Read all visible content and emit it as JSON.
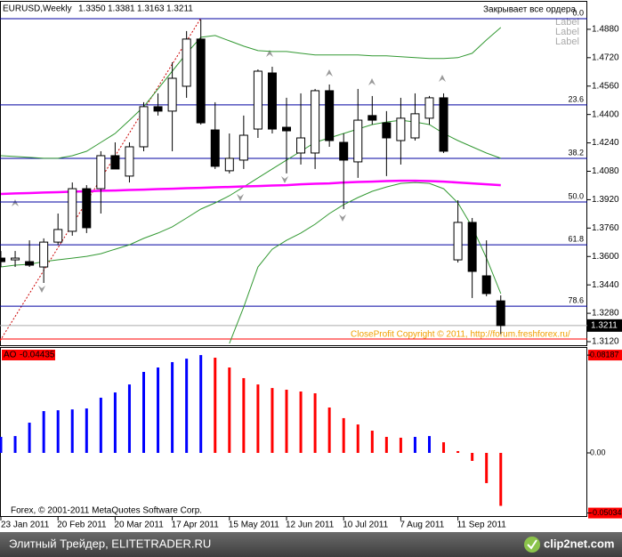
{
  "chart_data": [
    {
      "type": "candlestick",
      "title": "EURUSD,Weekly",
      "quote_labels": [
        "1.3350",
        "1.3381",
        "1.3163",
        "1.3211"
      ],
      "annotations": [
        "Закрывает все ордера",
        "Label",
        "Label",
        "Label",
        "CloseProfit Copyright © 2011, http://forum.freshforex.ru/"
      ],
      "categories": [
        "23 Jan 2011",
        null,
        null,
        null,
        "20 Feb 2011",
        null,
        null,
        null,
        "20 Mar 2011",
        null,
        null,
        null,
        "17 Apr 2011",
        null,
        null,
        null,
        "15 May 2011",
        null,
        null,
        null,
        "12 Jun 2011",
        null,
        null,
        null,
        "10 Jul 2011",
        null,
        null,
        null,
        "7 Aug 2011",
        null,
        null,
        null,
        "11 Sep 2011",
        null,
        null,
        null
      ],
      "open": [
        1.3591,
        1.3581,
        1.3571,
        1.3541,
        1.3681,
        1.3742,
        1.3982,
        1.3982,
        1.4168,
        1.4053,
        1.4218,
        1.4444,
        1.4419,
        1.4559,
        1.4825,
        1.4313,
        1.4083,
        1.4143,
        1.4318,
        1.4634,
        1.4328,
        1.4183,
        1.4183,
        1.4534,
        1.4243,
        1.4133,
        1.4394,
        1.4353,
        1.4253,
        1.4268,
        1.4379,
        1.4494,
        1.3581,
        1.3792,
        1.3491,
        1.335
      ],
      "high": [
        1.3631,
        1.3631,
        1.3691,
        1.3702,
        1.3842,
        1.4017,
        1.4002,
        1.4193,
        1.4243,
        1.4243,
        1.4469,
        1.4519,
        1.4694,
        1.487,
        1.4935,
        1.4469,
        1.4293,
        1.4394,
        1.4654,
        1.4669,
        1.4494,
        1.4519,
        1.4544,
        1.4569,
        1.4293,
        1.4544,
        1.4504,
        1.4419,
        1.4494,
        1.4519,
        1.4504,
        1.4519,
        1.3917,
        1.3817,
        1.3691,
        1.3381
      ],
      "low": [
        1.3541,
        1.3541,
        1.3541,
        1.3451,
        1.3666,
        1.3717,
        1.3732,
        1.3842,
        1.4093,
        1.4017,
        1.4193,
        1.4394,
        1.4193,
        1.4494,
        1.4343,
        1.4093,
        1.4068,
        1.4093,
        1.4268,
        1.4293,
        1.4068,
        1.4118,
        1.4093,
        1.4218,
        1.3867,
        1.4043,
        1.4343,
        1.4053,
        1.4118,
        1.4253,
        1.4343,
        1.4183,
        1.3566,
        1.3366,
        1.3376,
        1.3163
      ],
      "close": [
        1.3571,
        1.3591,
        1.3551,
        1.3681,
        1.3752,
        1.3982,
        1.3762,
        1.4168,
        1.4093,
        1.4218,
        1.4444,
        1.4419,
        1.4604,
        1.4825,
        1.4353,
        1.4108,
        1.4153,
        1.4283,
        1.4644,
        1.4318,
        1.4308,
        1.4268,
        1.4534,
        1.4253,
        1.4143,
        1.4368,
        1.4368,
        1.4268,
        1.4379,
        1.4404,
        1.4494,
        1.4193,
        1.3792,
        1.3516,
        1.3391,
        1.3211
      ],
      "up_color": "#ffffff",
      "down_color": "#000000",
      "overlays": [
        {
          "color": "#339933",
          "values": [
            1.4168,
            1.4163,
            1.4158,
            1.4153,
            1.4153,
            1.4168,
            1.4193,
            1.4243,
            1.4293,
            1.4368,
            1.4444,
            1.4544,
            1.4644,
            1.4745,
            1.4835,
            1.4845,
            1.4815,
            1.4785,
            1.476,
            1.4755,
            1.4755,
            1.4745,
            1.4735,
            1.4735,
            1.4735,
            1.4735,
            1.473,
            1.473,
            1.4725,
            1.472,
            1.4715,
            1.4715,
            1.472,
            1.4745,
            1.482,
            1.489
          ]
        },
        {
          "color": "#339933",
          "values": [
            1.3541,
            1.3551,
            1.3556,
            1.3571,
            1.3581,
            1.3591,
            1.3601,
            1.3616,
            1.3641,
            1.3666,
            1.3702,
            1.3732,
            1.3767,
            1.3817,
            1.3867,
            1.3902,
            1.3942,
            1.3992,
            1.4043,
            1.4093,
            1.4143,
            1.4193,
            1.4243,
            1.4268,
            1.4293,
            1.4318,
            1.4343,
            1.4358,
            1.4368,
            1.4358,
            1.4343,
            1.4293,
            1.4253,
            1.4218,
            1.4183,
            1.4153
          ]
        },
        {
          "color": "#339933",
          "values": [
            null,
            null,
            null,
            null,
            null,
            null,
            null,
            null,
            null,
            null,
            null,
            null,
            null,
            null,
            null,
            null,
            1.311,
            1.3315,
            1.3541,
            1.3641,
            1.3691,
            1.3732,
            1.3782,
            1.3842,
            1.3892,
            1.3932,
            1.3967,
            1.3992,
            1.4012,
            1.4017,
            1.4012,
            1.3982,
            1.3902,
            1.3767,
            1.3591,
            1.3391
          ]
        },
        {
          "color": "#ff00ff",
          "values": [
            1.3952,
            1.3955,
            1.3957,
            1.396,
            1.3962,
            1.3965,
            1.3967,
            1.397,
            1.3972,
            1.3975,
            1.3977,
            1.398,
            1.3982,
            1.3985,
            1.3987,
            1.399,
            1.3992,
            1.3995,
            1.3997,
            1.4,
            1.4002,
            1.4007,
            1.401,
            1.4012,
            1.4017,
            1.402,
            1.4022,
            1.4025,
            1.4027,
            1.4027,
            1.4025,
            1.4022,
            1.4017,
            1.4012,
            1.4007,
            1.4002
          ]
        }
      ],
      "levels": [
        {
          "value": 1.494,
          "label": "0.0",
          "color": "#0000a0"
        },
        {
          "value": 1.4454,
          "label": "23.6",
          "color": "#0000a0"
        },
        {
          "value": 1.4153,
          "label": "38.2",
          "color": "#0000a0"
        },
        {
          "value": 1.3907,
          "label": "50.0",
          "color": "#0000a0"
        },
        {
          "value": 1.3666,
          "label": "61.8",
          "color": "#0000a0"
        },
        {
          "value": 1.332,
          "label": "78.6",
          "color": "#0000a0"
        },
        {
          "value": 1.3135,
          "color": "#ff0000"
        }
      ],
      "ylim": [
        1.31,
        1.5035
      ],
      "yticks": [
        {
          "value": 1.488,
          "label": "1.4880"
        },
        {
          "value": 1.472,
          "label": "1.4720"
        },
        {
          "value": 1.456,
          "label": "1.4560"
        },
        {
          "value": 1.44,
          "label": "1.4400"
        },
        {
          "value": 1.424,
          "label": "1.4240"
        },
        {
          "value": 1.408,
          "label": "1.4080"
        },
        {
          "value": 1.392,
          "label": "1.3920"
        },
        {
          "value": 1.376,
          "label": "1.3760"
        },
        {
          "value": 1.36,
          "label": "1.3600"
        },
        {
          "value": 1.344,
          "label": "1.3440"
        },
        {
          "value": 1.328,
          "label": "1.3280"
        },
        {
          "value": 1.312,
          "label": "1.3120"
        }
      ],
      "grid": false
    },
    {
      "type": "bar",
      "title": "AO",
      "annotations": [
        "Forex, © 2001-2011 MetaQuotes Software Corp."
      ],
      "values": [
        0.0134,
        0.0141,
        0.0253,
        0.035,
        0.0357,
        0.0364,
        0.0372,
        0.0462,
        0.0506,
        0.0573,
        0.0678,
        0.0715,
        0.076,
        0.0789,
        0.0819,
        0.0797,
        0.0715,
        0.0626,
        0.0573,
        0.0543,
        0.0529,
        0.0514,
        0.0499,
        0.038,
        0.0291,
        0.0238,
        0.0186,
        0.0134,
        0.0127,
        0.0134,
        0.0141,
        0.0089,
        0.0015,
        -0.0067,
        -0.0253,
        -0.04435
      ],
      "up_color": "#0000ff",
      "down_color": "#ff0000",
      "ylim": [
        -0.0529,
        0.0879
      ],
      "yticks": [
        0.08187,
        {
          "value": 0,
          "label": "0.00"
        },
        -0.05034
      ],
      "grid": false
    }
  ],
  "footer": {
    "caption": "Элитный Трейдер, ELITETRADER.RU",
    "logo": "clip2net.com"
  }
}
